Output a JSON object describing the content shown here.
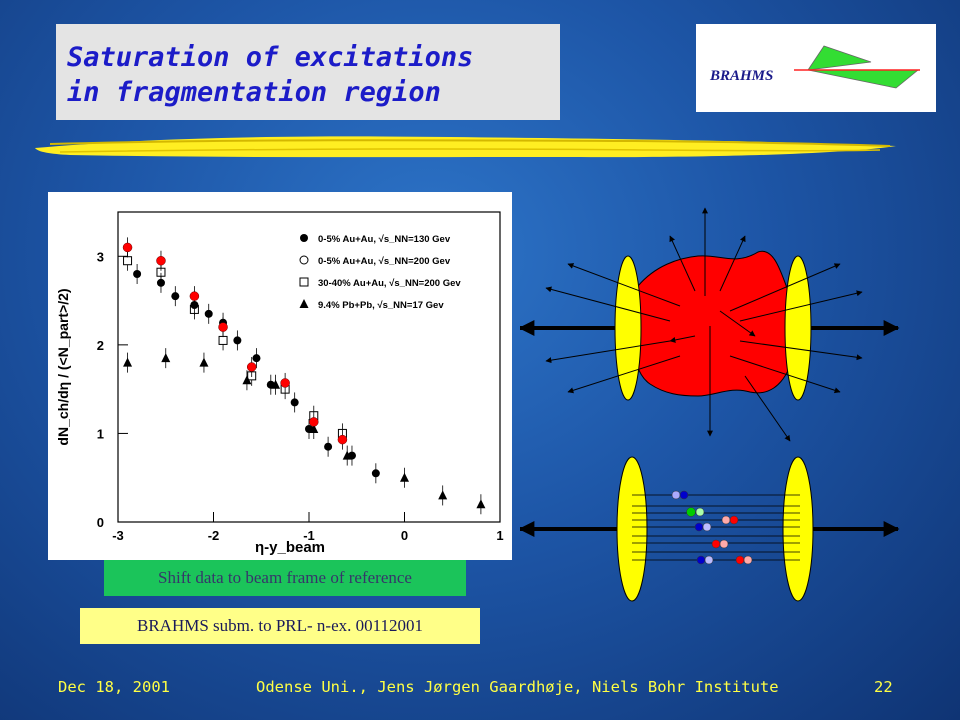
{
  "title": {
    "line1": "Saturation of excitations",
    "line2": "in fragmentation region"
  },
  "logo": {
    "text": "BRAHMS"
  },
  "colors": {
    "title_text": "#1c1cc8",
    "accent_yellow": "#ffff00",
    "fireball_red": "#ff0000",
    "caption_green": "#1bc45a",
    "caption_yellow": "#ffff88",
    "footer_text": "#ffff44"
  },
  "chart_data": {
    "type": "scatter",
    "xlabel": "η-y_beam",
    "ylabel": "dN_ch/dη / (<N_part>/2)",
    "xlim": [
      -3,
      1
    ],
    "ylim": [
      0,
      3.5
    ],
    "xticks": [
      "-3",
      "-2",
      "-1",
      "0",
      "1"
    ],
    "yticks": [
      "0",
      "1",
      "2",
      "3"
    ],
    "legend_position": "top-right",
    "series": [
      {
        "name": "0-5% Au+Au, √s_NN=130 Gev",
        "marker": "filled-circle",
        "x": [
          -2.8,
          -2.55,
          -2.4,
          -2.2,
          -2.05,
          -1.9,
          -1.75,
          -1.55,
          -1.4,
          -1.15,
          -1.0,
          -0.8,
          -0.55,
          -0.3
        ],
        "y": [
          2.8,
          2.7,
          2.55,
          2.45,
          2.35,
          2.25,
          2.05,
          1.85,
          1.55,
          1.35,
          1.05,
          0.85,
          0.75,
          0.55
        ]
      },
      {
        "name": "0-5% Au+Au, √s_NN=200 Gev",
        "marker": "red-circle",
        "x": [
          -2.9,
          -2.55,
          -2.2,
          -1.9,
          -1.6,
          -1.25,
          -0.95,
          -0.65
        ],
        "y": [
          3.1,
          2.95,
          2.55,
          2.2,
          1.75,
          1.57,
          1.13,
          0.93
        ]
      },
      {
        "name": "30-40% Au+Au, √s_NN=200 Gev",
        "marker": "open-square",
        "x": [
          -2.9,
          -2.55,
          -2.2,
          -1.9,
          -1.6,
          -1.25,
          -0.95,
          -0.65
        ],
        "y": [
          2.95,
          2.82,
          2.4,
          2.05,
          1.65,
          1.5,
          1.2,
          1.0
        ]
      },
      {
        "name": "9.4% Pb+Pb, √s_NN=17 Gev",
        "marker": "filled-triangle",
        "x": [
          -2.9,
          -2.5,
          -2.1,
          -1.65,
          -1.35,
          -0.95,
          -0.6,
          0.0,
          0.4,
          0.8
        ],
        "y": [
          1.8,
          1.85,
          1.8,
          1.6,
          1.55,
          1.05,
          0.75,
          0.5,
          0.3,
          0.2
        ]
      }
    ]
  },
  "captions": {
    "shift": "Shift data to beam frame of reference",
    "reference": "BRAHMS  subm. to PRL- n-ex. 00112001"
  },
  "footer": {
    "date": "Dec 18, 2001",
    "center": "Odense Uni.,  Jens Jørgen Gaardhøje, Niels Bohr Institute",
    "page": "22"
  }
}
